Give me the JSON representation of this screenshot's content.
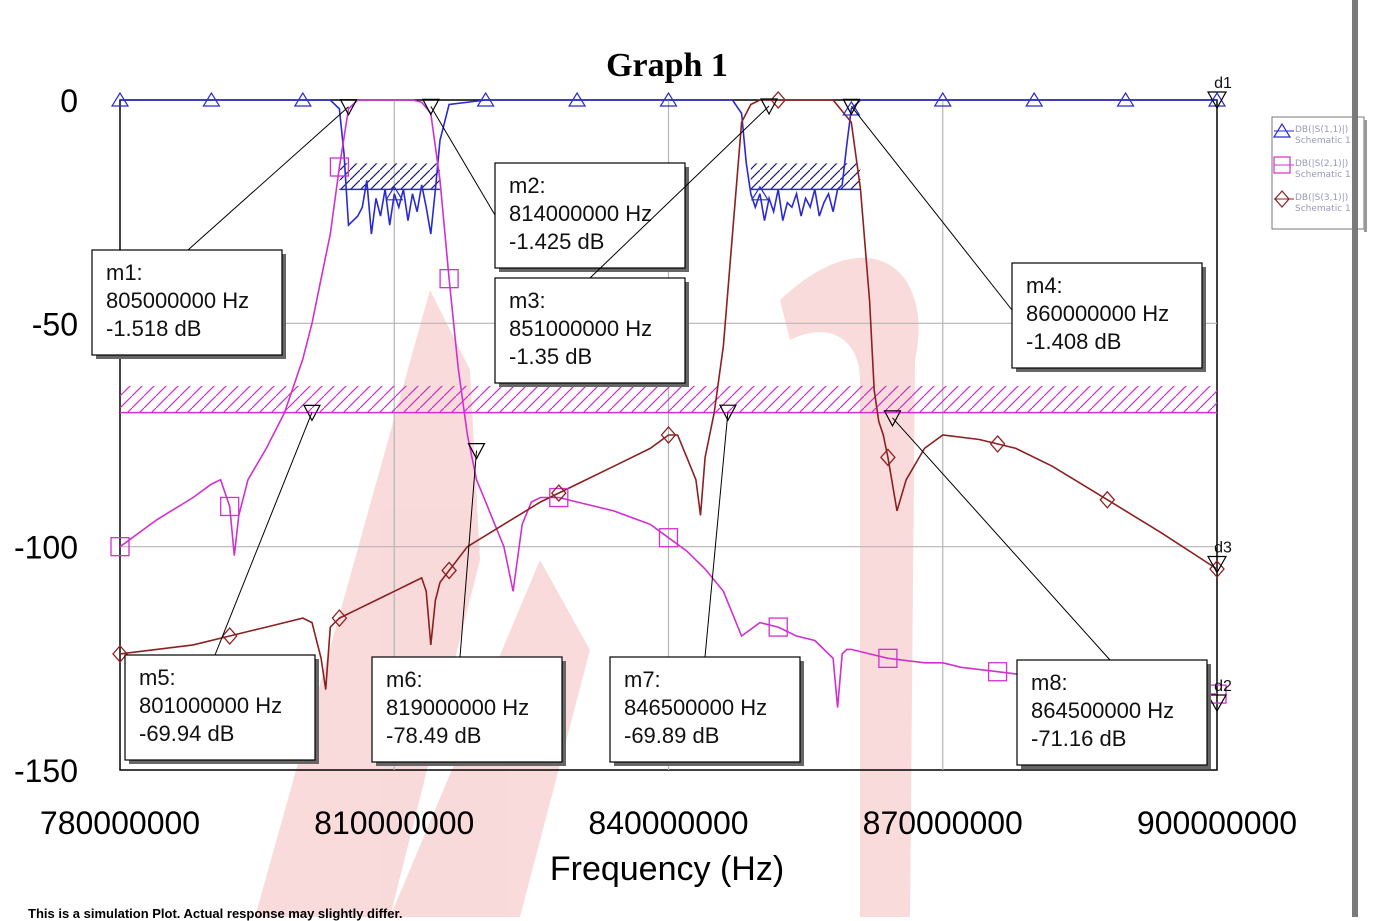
{
  "footer_note": "This is a simulation Plot. Actual response may slightly differ.",
  "chart_data": {
    "type": "line",
    "title": "Graph 1",
    "xlabel": "Frequency (Hz)",
    "ylabel": "",
    "xlim": [
      780000000,
      900000000
    ],
    "ylim": [
      -150,
      0
    ],
    "x_ticks": [
      "780000000",
      "810000000",
      "840000000",
      "870000000",
      "900000000"
    ],
    "x_tick_values": [
      780000000,
      810000000,
      840000000,
      870000000,
      900000000
    ],
    "y_ticks": [
      "0",
      "-50",
      "-100",
      "-150"
    ],
    "y_tick_values": [
      0,
      -50,
      -100,
      -150
    ],
    "grid": true,
    "legend_position": "right-outside",
    "legend": [
      {
        "name": "DB(|S(1,1)|)",
        "sub": "Schematic 1",
        "color": "#2a2ad0",
        "marker": "triangle"
      },
      {
        "name": "DB(|S(2,1)|)",
        "sub": "Schematic 1",
        "color": "#d030d0",
        "marker": "square"
      },
      {
        "name": "DB(|S(3,1)|)",
        "sub": "Schematic 1",
        "color": "#8b2020",
        "marker": "diamond"
      }
    ],
    "series": [
      {
        "name": "DB(|S(1,1)|)",
        "color": "#2a2ad0",
        "x": [
          780,
          790,
          800,
          803,
          804,
          804.5,
          805,
          806,
          806.5,
          807,
          807.5,
          808,
          808.5,
          809,
          809.5,
          810,
          810.5,
          811,
          811.5,
          812,
          812.5,
          813,
          813.5,
          814,
          814.5,
          815,
          816,
          820,
          830,
          840,
          845,
          847,
          848,
          848.5,
          849,
          849.5,
          850,
          850.5,
          851,
          851.5,
          852,
          852.5,
          853,
          853.5,
          854,
          854.5,
          855,
          855.5,
          856,
          856.5,
          857,
          857.5,
          858,
          858.5,
          859,
          859.5,
          860,
          861,
          864,
          870,
          880,
          890,
          900
        ],
        "y": [
          0,
          0,
          0,
          0,
          -2,
          -12,
          -28,
          -26,
          -24,
          -18,
          -30,
          -22,
          -26,
          -20,
          -28,
          -21,
          -24,
          -20,
          -27,
          -21,
          -25,
          -19,
          -24,
          -30,
          -20,
          -9,
          -1,
          0,
          0,
          0,
          0,
          0,
          -3,
          -14,
          -21,
          -24,
          -21,
          -27,
          -22,
          -25,
          -20,
          -27,
          -23,
          -24,
          -21,
          -26,
          -22,
          -24,
          -20,
          -26,
          -23,
          -21,
          -25,
          -20,
          -19,
          -10,
          -2,
          0,
          0,
          0,
          0,
          0,
          0
        ]
      },
      {
        "name": "DB(|S(2,1)|)",
        "color": "#d030d0",
        "x": [
          780,
          784,
          788,
          790,
          791,
          792,
          792.5,
          793,
          794,
          796,
          798,
          800,
          801,
          802,
          803,
          804,
          805,
          806,
          810,
          812,
          813,
          814,
          815,
          816,
          817,
          818,
          819,
          820,
          822,
          823,
          824,
          825,
          826,
          828,
          830,
          834,
          838,
          840,
          842,
          844,
          846,
          847,
          848,
          850,
          852,
          854,
          856,
          858,
          858.5,
          859,
          859.5,
          860,
          862,
          864,
          868,
          870,
          872,
          876,
          880,
          884,
          888,
          892,
          896,
          900
        ],
        "y": [
          -100,
          -94,
          -89,
          -86,
          -85,
          -91,
          -102,
          -93,
          -85,
          -78,
          -70,
          -58,
          -50,
          -40,
          -30,
          -15,
          -2,
          0,
          0,
          0,
          -0.5,
          -3,
          -18,
          -40,
          -60,
          -75,
          -85,
          -90,
          -100,
          -110,
          -95,
          -90,
          -89,
          -89,
          -90,
          -92,
          -95,
          -98,
          -101,
          -105,
          -110,
          -115,
          -120,
          -117,
          -118,
          -120,
          -121,
          -125,
          -136,
          -124,
          -123,
          -123,
          -124,
          -125,
          -126,
          -126,
          -127,
          -128,
          -129,
          -130,
          -131,
          -132,
          -133,
          -133
        ]
      },
      {
        "name": "DB(|S(3,1)|)",
        "color": "#8b2020",
        "x": [
          780,
          784,
          788,
          792,
          794,
          796,
          798,
          800,
          801,
          802,
          802.5,
          803,
          803.5,
          804,
          806,
          810,
          812,
          813,
          813.5,
          814,
          814.5,
          815,
          818,
          822,
          826,
          830,
          834,
          838,
          840,
          841,
          842,
          843,
          843.5,
          844,
          845,
          846,
          847,
          848,
          849,
          850,
          852,
          854,
          856,
          858,
          860,
          861,
          862,
          862.5,
          863,
          863.5,
          864,
          865,
          866,
          868,
          870,
          874,
          878,
          882,
          886,
          890,
          894,
          900
        ],
        "y": [
          -124,
          -123,
          -122,
          -120,
          -119,
          -118,
          -117,
          -116,
          -117,
          -125,
          -132,
          -118,
          -117,
          -116,
          -114,
          -110,
          -108,
          -107,
          -110,
          -122,
          -112,
          -108,
          -100,
          -95,
          -90,
          -86,
          -82,
          -78,
          -75,
          -75,
          -80,
          -85,
          -93,
          -80,
          -70,
          -55,
          -30,
          -5,
          -1,
          0,
          0,
          0,
          0,
          0,
          -5,
          -20,
          -45,
          -65,
          -72,
          -75,
          -80,
          -92,
          -85,
          -78,
          -75,
          -76,
          -78,
          -82,
          -87,
          -92,
          -97,
          -105
        ]
      }
    ],
    "masks": [
      {
        "series": "DB(|S(1,1)|)",
        "x_range": [
          804,
          815
        ],
        "y": -20
      },
      {
        "series": "DB(|S(1,1)|)",
        "x_range": [
          849,
          861
        ],
        "y": -20
      },
      {
        "series": "DB(|S(2,1)|)",
        "x_range": [
          780,
          900
        ],
        "y_range": [
          -70,
          -64
        ]
      }
    ],
    "markers": [
      {
        "id": "m1",
        "label": "m1:",
        "freq": "805000000 Hz",
        "value": "-1.518 dB",
        "x": 805,
        "y": -1.518
      },
      {
        "id": "m2",
        "label": "m2:",
        "freq": "814000000 Hz",
        "value": "-1.425 dB",
        "x": 814,
        "y": -1.425
      },
      {
        "id": "m3",
        "label": "m3:",
        "freq": "851000000 Hz",
        "value": "-1.35 dB",
        "x": 851,
        "y": -1.35
      },
      {
        "id": "m4",
        "label": "m4:",
        "freq": "860000000 Hz",
        "value": "-1.408 dB",
        "x": 860,
        "y": -1.408
      },
      {
        "id": "m5",
        "label": "m5:",
        "freq": "801000000 Hz",
        "value": "-69.94 dB",
        "x": 801,
        "y": -69.94
      },
      {
        "id": "m6",
        "label": "m6:",
        "freq": "819000000 Hz",
        "value": "-78.49 dB",
        "x": 819,
        "y": -78.49
      },
      {
        "id": "m7",
        "label": "m7:",
        "freq": "846500000 Hz",
        "value": "-69.89 dB",
        "x": 846.5,
        "y": -69.89
      },
      {
        "id": "m8",
        "label": "m8:",
        "freq": "864500000 Hz",
        "value": "-71.16 dB",
        "x": 864.5,
        "y": -71.16
      }
    ],
    "delta_markers": [
      {
        "label": "d1",
        "x": 900,
        "y": 0
      },
      {
        "label": "d3",
        "x": 900,
        "y": -104
      },
      {
        "label": "d2",
        "x": 900,
        "y": -135
      }
    ]
  }
}
